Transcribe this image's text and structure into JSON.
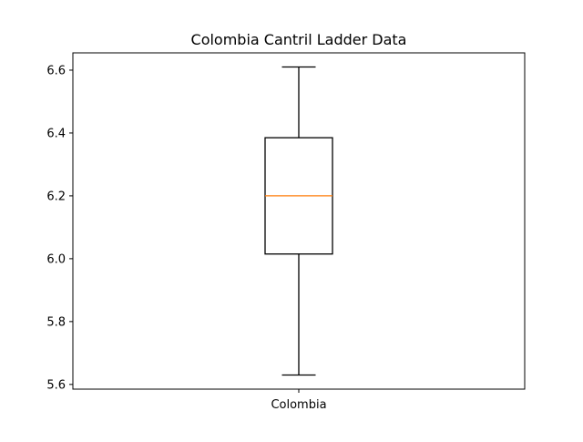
{
  "chart_data": {
    "type": "boxplot",
    "title": "Colombia Cantril Ladder Data",
    "xlabel": "",
    "ylabel": "",
    "categories": [
      "Colombia"
    ],
    "boxes": [
      {
        "category": "Colombia",
        "whisker_low": 5.63,
        "q1": 6.015,
        "median": 6.2,
        "q3": 6.385,
        "whisker_high": 6.61
      }
    ],
    "ylim": [
      5.585,
      6.655
    ],
    "yticks": [
      5.6,
      5.8,
      6.0,
      6.2,
      6.4,
      6.6
    ],
    "ytick_labels": [
      "5.6",
      "5.8",
      "6.0",
      "6.2",
      "6.4",
      "6.6"
    ],
    "grid": false,
    "colors": {
      "box": "#000000",
      "median": "#ff7f0e",
      "whisker": "#000000",
      "background": "#ffffff"
    }
  }
}
